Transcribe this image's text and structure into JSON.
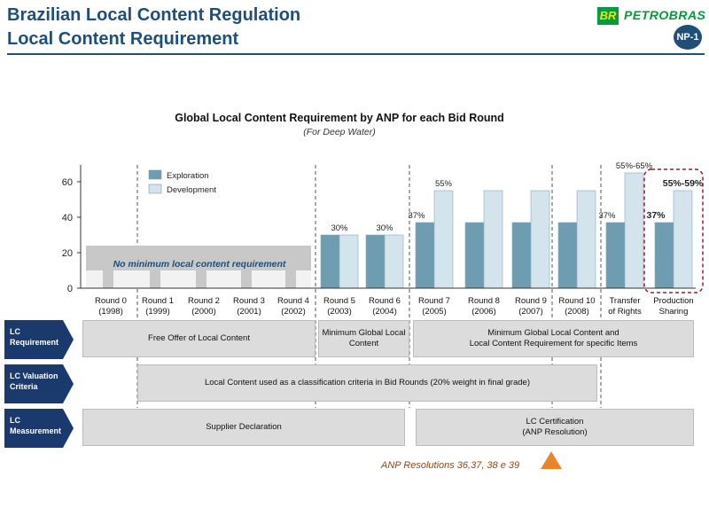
{
  "header": {
    "title_line1": "Brazilian Local Content Regulation",
    "title_line2": "Local Content Requirement",
    "logo_mark": "BR",
    "logo_text": "PETROBRAS",
    "badge": "NP-1"
  },
  "chart_data": {
    "type": "bar",
    "title": "Global Local Content Requirement by ANP for each Bid Round",
    "subtitle": "(For Deep Water)",
    "xlabel": "",
    "ylabel": "",
    "ylim": [
      0,
      70
    ],
    "yticks": [
      0,
      20,
      40,
      60
    ],
    "grid": false,
    "legend_position": "top-left",
    "categories": [
      {
        "line1": "Round 0",
        "line2": "(1998)"
      },
      {
        "line1": "Round 1",
        "line2": "(1999)"
      },
      {
        "line1": "Round 2",
        "line2": "(2000)"
      },
      {
        "line1": "Round 3",
        "line2": "(2001)"
      },
      {
        "line1": "Round 4",
        "line2": "(2002)"
      },
      {
        "line1": "Round 5",
        "line2": "(2003)"
      },
      {
        "line1": "Round 6",
        "line2": "(2004)"
      },
      {
        "line1": "Round 7",
        "line2": "(2005)"
      },
      {
        "line1": "Round 8",
        "line2": "(2006)"
      },
      {
        "line1": "Round 9",
        "line2": "(2007)"
      },
      {
        "line1": "Round 10",
        "line2": "(2008)"
      },
      {
        "line1": "Transfer",
        "line2": "of Rights"
      },
      {
        "line1": "Production",
        "line2": "Sharing"
      }
    ],
    "series": [
      {
        "name": "Exploration",
        "color": "#6e9cb0",
        "values": [
          null,
          null,
          null,
          null,
          null,
          30,
          30,
          37,
          37,
          37,
          37,
          37,
          37
        ]
      },
      {
        "name": "Development",
        "color": "#d4e4ec",
        "values": [
          null,
          null,
          null,
          null,
          null,
          30,
          30,
          55,
          55,
          55,
          55,
          65,
          55
        ]
      }
    ],
    "no_min_band": {
      "value": 24,
      "label": "No minimum local content requirement"
    },
    "annotations": [
      {
        "text": "30%",
        "category": 5,
        "value": 30
      },
      {
        "text": "30%",
        "category": 6,
        "value": 30
      },
      {
        "text": "37%",
        "category": 7,
        "value": 37
      },
      {
        "text": "55%",
        "category": 7,
        "value": 55
      },
      {
        "text": "37%",
        "category": 11,
        "value": 37
      },
      {
        "text": "55%-65%",
        "category": 11,
        "value": 65
      },
      {
        "text": "37%",
        "category": 12,
        "value": 37,
        "bold": true
      },
      {
        "text": "55%-59%",
        "category": 12,
        "value": 55,
        "bold": true
      }
    ]
  },
  "rows": {
    "requirement": {
      "label": "LC\nRequirement",
      "boxes": [
        "Free Offer of Local Content",
        "Minimum  Global Local\nContent",
        "Minimum  Global Local Content and\nLocal Content Requirement for specific Items"
      ]
    },
    "valuation": {
      "label": "LC Valuation\nCriteria",
      "boxes": [
        "Local Content used as a classification criteria in Bid Rounds (20% weight in final grade)"
      ]
    },
    "measurement": {
      "label": "LC\nMeasurement",
      "boxes": [
        "Supplier Declaration",
        "LC Certification\n(ANP Resolution)"
      ]
    }
  },
  "colors": {
    "label_bg": "#1a3a6e",
    "title": "#1f4e79",
    "highlight_border": "#a01a2a",
    "footer": "#8b4a1a",
    "triangle": "#e8852a"
  },
  "footer": {
    "note": "ANP Resolutions 36,37, 38 e 39"
  }
}
